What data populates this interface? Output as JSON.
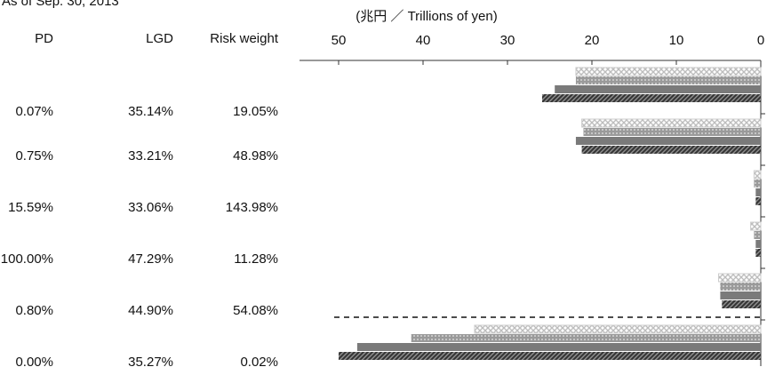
{
  "chart_data": {
    "type": "bar",
    "orientation": "horizontal",
    "note": "As of Sep. 30, 2013",
    "x_label": "(兆円 ／ Trillions of yen)",
    "xlim": [
      50,
      0
    ],
    "xticks": [
      50,
      40,
      30,
      20,
      10,
      0
    ],
    "table": {
      "columns": [
        "PD",
        "LGD",
        "Risk weight"
      ],
      "rows": [
        [
          "0.07%",
          "35.14%",
          "19.05%"
        ],
        [
          "0.75%",
          "33.21%",
          "48.98%"
        ],
        [
          "15.59%",
          "33.06%",
          "143.98%"
        ],
        [
          "100.00%",
          "47.29%",
          "11.28%"
        ],
        [
          "0.80%",
          "44.90%",
          "54.08%"
        ],
        [
          "0.00%",
          "35.27%",
          "0.02%"
        ]
      ]
    },
    "series": [
      {
        "color": "#cfcfcf",
        "pattern": "crosshatch",
        "values": [
          21.9,
          21.2,
          0.8,
          1.2,
          5.0,
          33.9
        ]
      },
      {
        "color": "#a0a0a0",
        "pattern": "dots",
        "values": [
          21.9,
          21.0,
          0.8,
          0.8,
          4.8,
          41.4
        ]
      },
      {
        "color": "#7a7a7a",
        "pattern": "solid",
        "values": [
          24.4,
          21.9,
          0.6,
          0.6,
          4.8,
          47.8
        ]
      },
      {
        "color": "#4a4a4a",
        "pattern": "diagonal",
        "values": [
          25.9,
          21.2,
          0.6,
          0.6,
          4.6,
          50.0
        ]
      }
    ]
  }
}
